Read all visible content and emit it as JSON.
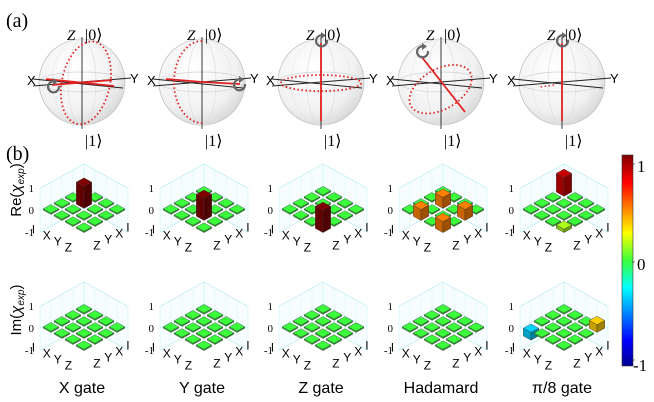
{
  "panel_a": {
    "label": "(a)",
    "ket0": "|0⟩",
    "ket1": "|1⟩",
    "axis_z": "Z",
    "axis_x": "X",
    "axis_y": "Y"
  },
  "panel_b": {
    "label": "(b)",
    "ylabel_re": "Re(χexp)",
    "ylabel_im": "Im(χexp)",
    "ylabel_re_main": "Re(",
    "ylabel_re_chi": "χ",
    "ylabel_re_sub": "exp",
    "ylabel_re_close": ")",
    "ylabel_im_main": "Im(",
    "ylabel_im_chi": "χ",
    "ylabel_im_sub": "exp",
    "ylabel_im_close": ")",
    "z_ticks": [
      "1",
      "0",
      "-1"
    ],
    "basis": [
      "I",
      "X",
      "Y",
      "Z"
    ],
    "colorbar_ticks": [
      "1",
      "0",
      "-1"
    ]
  },
  "gates": [
    "X gate",
    "Y gate",
    "Z gate",
    "Hadamard",
    "π/8 gate"
  ],
  "chart_data": {
    "type": "bar3d",
    "basis": [
      "I",
      "X",
      "Y",
      "Z"
    ],
    "zlim": [
      -1,
      1
    ],
    "colormap": "jet",
    "re": [
      [
        [
          0,
          0,
          0,
          0
        ],
        [
          0,
          1,
          0,
          0
        ],
        [
          0,
          0,
          0,
          0
        ],
        [
          0,
          0,
          0,
          0
        ]
      ],
      [
        [
          0,
          0,
          0,
          0
        ],
        [
          0,
          0,
          0,
          0
        ],
        [
          0,
          0,
          1,
          0
        ],
        [
          0,
          0,
          0,
          0
        ]
      ],
      [
        [
          0,
          0,
          0,
          0
        ],
        [
          0,
          0,
          0,
          0
        ],
        [
          0,
          0,
          0,
          0
        ],
        [
          0,
          0,
          0,
          1
        ]
      ],
      [
        [
          0,
          0,
          0,
          0
        ],
        [
          0,
          0.5,
          0,
          0.5
        ],
        [
          0,
          0,
          0,
          0
        ],
        [
          0,
          0.5,
          0,
          0.5
        ]
      ],
      [
        [
          0.85,
          0,
          0,
          0
        ],
        [
          0,
          0,
          0,
          0
        ],
        [
          0,
          0,
          0,
          0
        ],
        [
          0,
          0,
          0,
          0.15
        ]
      ]
    ],
    "im": [
      [
        [
          0,
          0,
          0,
          0
        ],
        [
          0,
          0,
          0,
          0
        ],
        [
          0,
          0,
          0,
          0
        ],
        [
          0,
          0,
          0,
          0
        ]
      ],
      [
        [
          0,
          0,
          0,
          0
        ],
        [
          0,
          0,
          0,
          0
        ],
        [
          0,
          0,
          0,
          0
        ],
        [
          0,
          0,
          0,
          0
        ]
      ],
      [
        [
          0,
          0,
          0,
          0
        ],
        [
          0,
          0,
          0,
          0
        ],
        [
          0,
          0,
          0,
          0
        ],
        [
          0,
          0,
          0,
          0
        ]
      ],
      [
        [
          0,
          0,
          0,
          0
        ],
        [
          0,
          0,
          0,
          0
        ],
        [
          0,
          0,
          0,
          0
        ],
        [
          0,
          0,
          0,
          0
        ]
      ],
      [
        [
          0,
          0,
          0,
          0.35
        ],
        [
          0,
          0,
          0,
          0
        ],
        [
          0,
          0,
          0,
          0
        ],
        [
          -0.35,
          0,
          0,
          0
        ]
      ]
    ]
  },
  "colors": {
    "trajectory": "#e02020",
    "axis": "#222222",
    "sphere_edge": "#bdbdbd"
  }
}
